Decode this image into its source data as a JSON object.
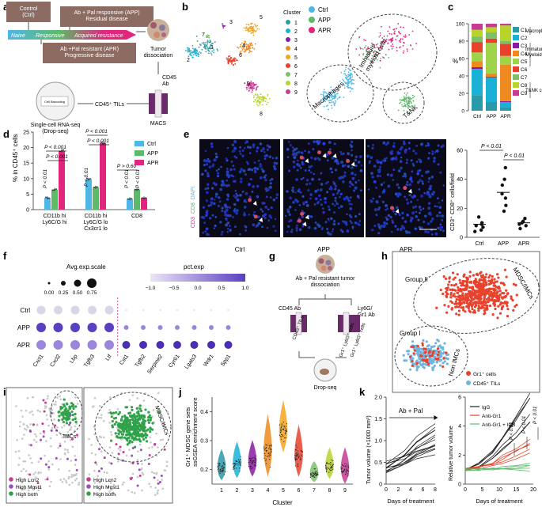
{
  "panel_letters": [
    "a",
    "b",
    "c",
    "d",
    "e",
    "f",
    "g",
    "h",
    "i",
    "j",
    "k"
  ],
  "panel_a": {
    "ctrl_box": "Control\n(Ctrl)",
    "app_box": "Ab + Pal responsive (APP)\nResidual disease",
    "apr_box": "Ab +Pal resistant (APR)\nProgressive disease",
    "arrow_naive": "Naive",
    "arrow_responsive": "Responsive",
    "arrow_acquired": "Acquired resistance",
    "tumor": "Tumor\ndissociation",
    "cd45ab": "CD45\nAb",
    "tils": "CD45⁺ TILs",
    "macs": "MACS",
    "dropseq": "Single-cell RNA-seq\n(Drop-seq)",
    "dropseq_inner": "Cell Barcoding"
  },
  "panel_b": {
    "legend_title": "Cluster",
    "clusters": [
      "1",
      "2",
      "3",
      "4",
      "5",
      "6",
      "7",
      "8",
      "9"
    ],
    "cluster_colors": [
      "#2b9aa8",
      "#19b1d6",
      "#8a1ba3",
      "#ee8a1f",
      "#f4a31c",
      "#e8422d",
      "#7fbf6a",
      "#b7d42d",
      "#c73b93"
    ],
    "cluster_labels_plot": [
      "1",
      "2",
      "3",
      "4",
      "5",
      "6",
      "7",
      "8",
      "9"
    ],
    "groups": [
      "Ctrl",
      "APP",
      "APR"
    ],
    "group_colors": [
      "#4fb7e5",
      "#5cba6a",
      "#e0267d"
    ],
    "region_immature": "Immature\nmyeloid cells",
    "region_macro": "Macrophages",
    "region_tnk": "T&NK"
  },
  "panel_c": {
    "chart_data": {
      "type": "bar",
      "stacked": true,
      "categories": [
        "Ctrl",
        "APP",
        "APR"
      ],
      "ylabel": "%",
      "ylim": [
        0,
        100
      ],
      "yticks": [
        "0",
        "20",
        "40",
        "60",
        "80",
        "100"
      ],
      "series": [
        {
          "name": "C1",
          "color": "#2b9aa8",
          "values": [
            18,
            10,
            4
          ]
        },
        {
          "name": "C2",
          "color": "#19b1d6",
          "values": [
            30,
            28,
            6
          ]
        },
        {
          "name": "C3",
          "color": "#8a1ba3",
          "values": [
            2,
            1,
            1
          ]
        },
        {
          "name": "C4",
          "color": "#ee8a1f",
          "values": [
            7,
            4,
            42
          ]
        },
        {
          "name": "C5",
          "color": "#9ed34a",
          "values": [
            10,
            35,
            10
          ]
        },
        {
          "name": "C6",
          "color": "#e8422d",
          "values": [
            12,
            5,
            14
          ]
        },
        {
          "name": "C7",
          "color": "#7fbf6a",
          "values": [
            6,
            7,
            3
          ]
        },
        {
          "name": "C8",
          "color": "#b7d42d",
          "values": [
            8,
            6,
            18
          ]
        },
        {
          "name": "C9",
          "color": "#c73b93",
          "values": [
            7,
            4,
            2
          ]
        }
      ],
      "group_labels": [
        "Macrophages",
        "Immature\nMyeloid cells",
        "T&NK cells"
      ]
    }
  },
  "panel_d": {
    "chart_data": {
      "type": "bar",
      "ylabel": "% in CD45⁺ cells",
      "ylim": [
        0,
        25
      ],
      "yticks": [
        "0",
        "5",
        "10",
        "15",
        "20",
        "25"
      ],
      "categories": [
        "CD11b hi\nLy6C/G hi",
        "CD11b hi\nLy6C/G lo\nCx3cr1 lo",
        "CD8"
      ],
      "series": [
        {
          "name": "Ctrl",
          "color": "#4fb7e5",
          "values": [
            3.8,
            9.8,
            3.5
          ]
        },
        {
          "name": "APP",
          "color": "#5cba6a",
          "values": [
            6.5,
            7.2,
            6.5
          ]
        },
        {
          "name": "APR",
          "color": "#e0267d",
          "values": [
            19.0,
            21.5,
            3.8
          ]
        }
      ],
      "annotations": [
        "P < 0.01",
        "P < 0.001",
        "P < 0.001",
        "P < 0.01",
        "P < 0.001",
        "P < 0.001",
        "P < 0.01",
        "P < 0.01",
        "P > 0.60"
      ]
    }
  },
  "panel_e": {
    "stain_cd3": "CD3",
    "stain_cd8": "CD8",
    "stain_dapi": "DAPI",
    "images": [
      "Ctrl",
      "APP",
      "APR"
    ],
    "chart_data": {
      "type": "scatter",
      "ylabel": "CD3⁺ CD8⁺ cells/field",
      "ylim": [
        0,
        60
      ],
      "yticks": [
        "0",
        "20",
        "40",
        "60"
      ],
      "categories": [
        "Ctrl",
        "APP",
        "APR"
      ],
      "points": [
        [
          4,
          5,
          7,
          8,
          9,
          10,
          14
        ],
        [
          18,
          22,
          27,
          30,
          36,
          40,
          48
        ],
        [
          6,
          8,
          9,
          10,
          11,
          13
        ]
      ],
      "means": [
        9,
        31,
        10
      ],
      "annotations": [
        "P < 0.01",
        "P < 0.01"
      ]
    }
  },
  "panel_f": {
    "avg_title": "Avg.exp.scale",
    "avg_values": [
      "0.00",
      "0.25",
      "0.50",
      "0.75"
    ],
    "pct_title": "pct.exp",
    "pct_values": [
      "−1.0",
      "−0.5",
      "0.0",
      "0.5",
      "1.0"
    ],
    "rows": [
      "Ctrl",
      "APP",
      "APR"
    ],
    "genes": [
      "Cxcl1",
      "Cxcl2",
      "Lbp",
      "Tgfb3",
      "Ltf",
      "Cst1",
      "Tgfb2",
      "Serpine2",
      "Cyr61",
      "Lgals3",
      "Wdr1",
      "Spp1"
    ]
  },
  "panel_g": {
    "title": "Ab + Pal  resistant tumor\ndissociation",
    "cd45": "CD45 Ab",
    "ly6g": "Ly6G/\nGr1 Ab",
    "tils": "CD45⁺ TILs",
    "gr1": "Gr1⁺ Ly6G⁺ cells",
    "gr1neg": "Gr1⁺ Ly6G⁺ cells",
    "dropseq": "Drop-seq"
  },
  "panel_h": {
    "group2": "Group II",
    "group1": "Group I",
    "mdsc": "MDSC/IMCs",
    "non": "Non IMCs",
    "legend": [
      "Gr1⁺ cells",
      "CD45⁺ TILs"
    ],
    "colors": [
      "#e8422d",
      "#6fb5e0"
    ]
  },
  "panel_i": {
    "imcs": "IMCs",
    "mdsc": "MDSC/IMCs",
    "legend": [
      "High Lcn2",
      "High Mgst1",
      "High both"
    ],
    "colors": [
      "#c73b93",
      "#9a4fbf",
      "#2fa24a"
    ]
  },
  "panel_j": {
    "chart_data": {
      "type": "violin",
      "ylabel": "Gr1⁺ MDSC gene sets\nssGSEA enrichment score",
      "xlabel": "Cluster",
      "ylim": [
        0.15,
        0.45
      ],
      "yticks": [
        "0.2",
        "0.3",
        "0.4"
      ],
      "categories": [
        "1",
        "2",
        "3",
        "4",
        "5",
        "6",
        "7",
        "8",
        "9"
      ],
      "medians": [
        0.205,
        0.22,
        0.225,
        0.26,
        0.33,
        0.245,
        0.185,
        0.21,
        0.2
      ],
      "colors": [
        "#2b9aa8",
        "#19b1d6",
        "#8a1ba3",
        "#ee8a1f",
        "#f4a31c",
        "#e8422d",
        "#7fbf6a",
        "#b7d42d",
        "#c73b93"
      ]
    }
  },
  "panel_k": {
    "left": {
      "chart_data": {
        "type": "line",
        "title": "Ab + Pal",
        "ylabel": "Tumor volume (×1000 mm³)",
        "xlabel": "Days of treatment",
        "xlim": [
          0,
          8
        ],
        "ylim": [
          0,
          2.0
        ],
        "xticks": [
          "0",
          "2",
          "4",
          "6",
          "8"
        ],
        "yticks": [
          "0",
          "0.5",
          "1.0",
          "1.5",
          "2.0"
        ]
      }
    },
    "right": {
      "chart_data": {
        "type": "line",
        "ylabel": "Relative tumor  volume",
        "xlabel": "Days of treatment",
        "xlim": [
          0,
          20
        ],
        "ylim": [
          0,
          6
        ],
        "xticks": [
          "0",
          "5",
          "10",
          "15",
          "20"
        ],
        "yticks": [
          "0",
          "2",
          "4",
          "6"
        ],
        "legend": [
          "IgG",
          "Anti-Gr1",
          "Anti-Gr1 + ICB"
        ],
        "colors": [
          "#222222",
          "#e8422d",
          "#5cba6a"
        ],
        "annotations": [
          "P < 0.01",
          "P < 0.01",
          "P < 0.01"
        ]
      }
    }
  }
}
